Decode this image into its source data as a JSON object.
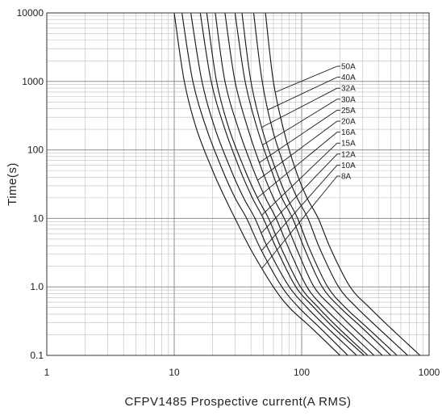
{
  "chart_data": {
    "type": "line",
    "title": "",
    "xlabel": "CFPV1485 Prospective current(A RMS)",
    "ylabel": "Time(s)",
    "x_scale": "log",
    "y_scale": "log",
    "xlim": [
      1,
      1000
    ],
    "ylim": [
      0.1,
      10000
    ],
    "x_ticks": [
      {
        "value": 1,
        "label": "1"
      },
      {
        "value": 10,
        "label": "10"
      },
      {
        "value": 100,
        "label": "100"
      },
      {
        "value": 1000,
        "label": "1000"
      }
    ],
    "y_ticks": [
      {
        "value": 0.1,
        "label": "0.1"
      },
      {
        "value": 1,
        "label": "1.0"
      },
      {
        "value": 10,
        "label": "10"
      },
      {
        "value": 100,
        "label": "100"
      },
      {
        "value": 1000,
        "label": "1000"
      },
      {
        "value": 10000,
        "label": "10000"
      }
    ],
    "grid": true,
    "legend": "leader-line labels at right",
    "line_color": "#1a1a1a",
    "grid_color": "#bdbdbd",
    "series": [
      {
        "name": "8A",
        "points": [
          [
            10,
            10000
          ],
          [
            12,
            1000
          ],
          [
            15,
            200
          ],
          [
            20,
            50
          ],
          [
            25,
            20
          ],
          [
            30,
            10
          ],
          [
            40,
            3.5
          ],
          [
            60,
            1
          ],
          [
            80,
            0.5
          ],
          [
            120,
            0.25
          ],
          [
            200,
            0.1
          ]
        ]
      },
      {
        "name": "10A",
        "points": [
          [
            11.5,
            10000
          ],
          [
            14,
            1000
          ],
          [
            18,
            200
          ],
          [
            24,
            50
          ],
          [
            30,
            20
          ],
          [
            37,
            10
          ],
          [
            48,
            3.5
          ],
          [
            70,
            1
          ],
          [
            95,
            0.5
          ],
          [
            140,
            0.25
          ],
          [
            230,
            0.1
          ]
        ]
      },
      {
        "name": "12A",
        "points": [
          [
            13.5,
            10000
          ],
          [
            16.5,
            1000
          ],
          [
            21,
            200
          ],
          [
            28,
            50
          ],
          [
            35,
            20
          ],
          [
            43,
            10
          ],
          [
            55,
            3.5
          ],
          [
            80,
            1
          ],
          [
            110,
            0.5
          ],
          [
            160,
            0.25
          ],
          [
            270,
            0.1
          ]
        ]
      },
      {
        "name": "15A",
        "points": [
          [
            16,
            10000
          ],
          [
            19.5,
            1000
          ],
          [
            25,
            200
          ],
          [
            33,
            50
          ],
          [
            41,
            20
          ],
          [
            50,
            10
          ],
          [
            64,
            3.5
          ],
          [
            90,
            1
          ],
          [
            125,
            0.5
          ],
          [
            180,
            0.25
          ],
          [
            310,
            0.1
          ]
        ]
      },
      {
        "name": "16A",
        "points": [
          [
            18,
            10000
          ],
          [
            21.5,
            1000
          ],
          [
            27,
            200
          ],
          [
            36,
            50
          ],
          [
            45,
            20
          ],
          [
            55,
            10
          ],
          [
            70,
            3.5
          ],
          [
            98,
            1
          ],
          [
            135,
            0.5
          ],
          [
            195,
            0.25
          ],
          [
            330,
            0.1
          ]
        ]
      },
      {
        "name": "20A",
        "points": [
          [
            21,
            10000
          ],
          [
            25,
            1000
          ],
          [
            32,
            200
          ],
          [
            42,
            50
          ],
          [
            52,
            20
          ],
          [
            63,
            10
          ],
          [
            80,
            3.5
          ],
          [
            110,
            1
          ],
          [
            150,
            0.5
          ],
          [
            220,
            0.25
          ],
          [
            370,
            0.1
          ]
        ]
      },
      {
        "name": "25A",
        "points": [
          [
            25,
            10000
          ],
          [
            30,
            1000
          ],
          [
            38,
            200
          ],
          [
            49,
            50
          ],
          [
            60,
            20
          ],
          [
            73,
            10
          ],
          [
            92,
            3.5
          ],
          [
            125,
            1
          ],
          [
            175,
            0.5
          ],
          [
            255,
            0.25
          ],
          [
            430,
            0.1
          ]
        ]
      },
      {
        "name": "30A",
        "points": [
          [
            30,
            10000
          ],
          [
            36,
            1000
          ],
          [
            45,
            200
          ],
          [
            58,
            50
          ],
          [
            70,
            20
          ],
          [
            85,
            10
          ],
          [
            106,
            3.5
          ],
          [
            145,
            1
          ],
          [
            200,
            0.5
          ],
          [
            300,
            0.25
          ],
          [
            500,
            0.1
          ]
        ]
      },
      {
        "name": "32A",
        "points": [
          [
            34,
            10000
          ],
          [
            40,
            1000
          ],
          [
            49,
            200
          ],
          [
            63,
            50
          ],
          [
            77,
            20
          ],
          [
            93,
            10
          ],
          [
            116,
            3.5
          ],
          [
            160,
            1
          ],
          [
            220,
            0.5
          ],
          [
            330,
            0.25
          ],
          [
            560,
            0.1
          ]
        ]
      },
      {
        "name": "40A",
        "points": [
          [
            42,
            10000
          ],
          [
            49,
            1000
          ],
          [
            59,
            200
          ],
          [
            75,
            50
          ],
          [
            92,
            20
          ],
          [
            112,
            10
          ],
          [
            140,
            3.5
          ],
          [
            195,
            1
          ],
          [
            270,
            0.5
          ],
          [
            400,
            0.25
          ],
          [
            680,
            0.1
          ]
        ]
      },
      {
        "name": "50A",
        "points": [
          [
            52,
            10000
          ],
          [
            60,
            1000
          ],
          [
            72,
            200
          ],
          [
            90,
            50
          ],
          [
            110,
            20
          ],
          [
            135,
            10
          ],
          [
            170,
            3.5
          ],
          [
            240,
            1
          ],
          [
            340,
            0.5
          ],
          [
            500,
            0.25
          ],
          [
            850,
            0.1
          ]
        ]
      }
    ]
  }
}
